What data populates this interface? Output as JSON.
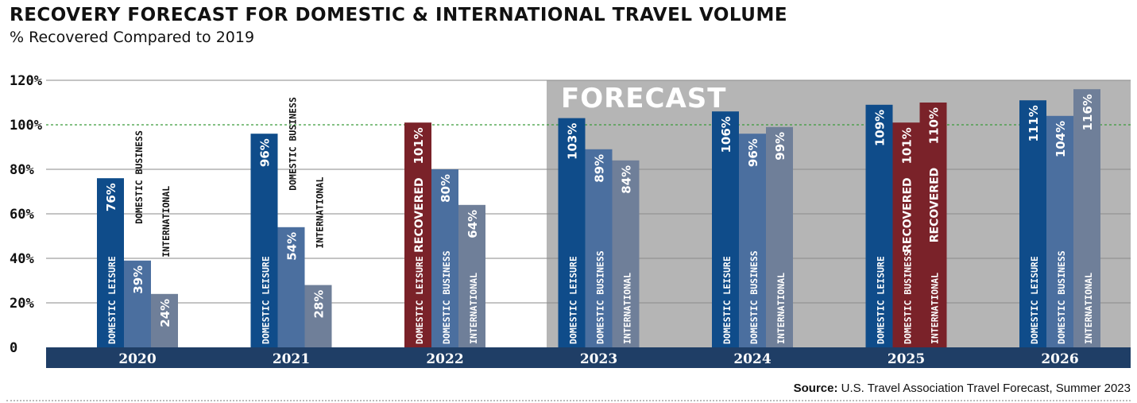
{
  "header": {
    "title": "RECOVERY FORECAST FOR DOMESTIC & INTERNATIONAL TRAVEL VOLUME",
    "subtitle": "% Recovered Compared to 2019"
  },
  "forecast_label": "FORECAST",
  "source": {
    "label": "Source:",
    "text": "U.S. Travel Association Travel Forecast, Summer 2023"
  },
  "colors": {
    "domestic_leisure": "#0f4c8a",
    "domestic_business": "#4b6f9f",
    "international": "#6f7f99",
    "recovered": "#7a2229",
    "forecast_bg": "#b5b5b5",
    "axis_band": "#1f3e66",
    "reference_line": "#3a9a3a"
  },
  "chart_data": {
    "type": "bar",
    "title": "RECOVERY FORECAST FOR DOMESTIC & INTERNATIONAL TRAVEL VOLUME",
    "subtitle": "% Recovered Compared to 2019",
    "categories": [
      "2020",
      "2021",
      "2022",
      "2023",
      "2024",
      "2025",
      "2026"
    ],
    "series": [
      {
        "name": "DOMESTIC LEISURE",
        "values": [
          76,
          96,
          101,
          103,
          106,
          109,
          111
        ]
      },
      {
        "name": "DOMESTIC BUSINESS",
        "values": [
          39,
          54,
          80,
          89,
          96,
          101,
          104
        ]
      },
      {
        "name": "INTERNATIONAL",
        "values": [
          24,
          28,
          64,
          84,
          99,
          110,
          116
        ]
      }
    ],
    "data_labels": [
      [
        "76%",
        "39%",
        "24%"
      ],
      [
        "96%",
        "54%",
        "28%"
      ],
      [
        "101%",
        "80%",
        "64%"
      ],
      [
        "103%",
        "89%",
        "84%"
      ],
      [
        "106%",
        "96%",
        "99%"
      ],
      [
        "109%",
        "101%",
        "110%"
      ],
      [
        "111%",
        "104%",
        "116%"
      ]
    ],
    "bar_labels": [
      [
        "DOMESTIC LEISURE",
        "DOMESTIC BUSINESS",
        "INTERNATIONAL"
      ],
      [
        "DOMESTIC LEISURE",
        "DOMESTIC BUSINESS",
        "INTERNATIONAL"
      ],
      [
        "DOMESTIC LEISURE",
        "DOMESTIC BUSINESS",
        "INTERNATIONAL"
      ],
      [
        "DOMESTIC LEISURE",
        "DOMESTIC BUSINESS",
        "INTERNATIONAL"
      ],
      [
        "DOMESTIC LEISURE",
        "DOMESTIC BUSINESS",
        "INTERNATIONAL"
      ],
      [
        "DOMESTIC LEISURE",
        "DOMESTIC BUSINESS",
        "INTERNATIONAL"
      ],
      [
        "DOMESTIC LEISURE",
        "DOMESTIC BUSINESS",
        "INTERNATIONAL"
      ]
    ],
    "recovered_label": "RECOVERED",
    "recovered_bars": [
      [
        2,
        0
      ],
      [
        5,
        1
      ],
      [
        5,
        2
      ]
    ],
    "forecast_categories": [
      "2023",
      "2024",
      "2025",
      "2026"
    ],
    "reference_line": 100,
    "ylim": [
      0,
      120
    ],
    "yticks": [
      "0",
      "20%",
      "40%",
      "60%",
      "80%",
      "100%",
      "120%"
    ],
    "ytick_values": [
      0,
      20,
      40,
      60,
      80,
      100,
      120
    ],
    "grid": true,
    "legend": "none"
  }
}
